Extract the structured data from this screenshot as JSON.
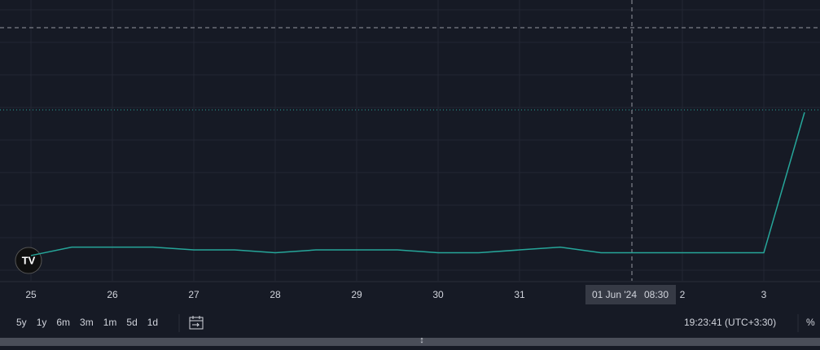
{
  "chart_data": {
    "type": "line",
    "categories": [
      "25",
      null,
      "26",
      null,
      "27",
      null,
      "28",
      null,
      "29",
      null,
      "30",
      null,
      "31",
      null,
      null,
      null,
      "2",
      null,
      "3",
      null
    ],
    "series": [
      {
        "color": "#26a69a",
        "values": [
          9,
          12,
          12,
          12,
          11,
          11,
          10,
          11,
          11,
          11,
          10,
          10,
          11,
          12,
          10,
          10,
          10,
          10,
          10,
          60
        ]
      }
    ],
    "ylim": [
      0,
      100
    ],
    "crosshair": {
      "date": "01 Jun '24",
      "time": "08:30"
    }
  },
  "toolbar": {
    "ranges": [
      "5y",
      "1y",
      "6m",
      "3m",
      "1m",
      "5d",
      "1d"
    ],
    "clock": "19:23:41 (UTC+3:30)",
    "percent": "%"
  }
}
